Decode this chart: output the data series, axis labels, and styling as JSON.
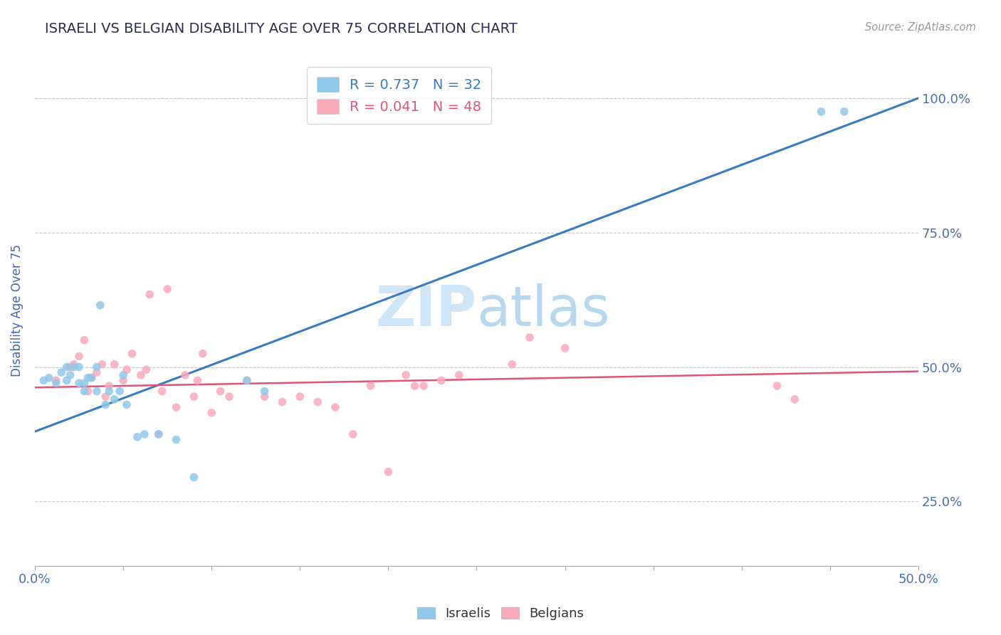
{
  "title": "ISRAELI VS BELGIAN DISABILITY AGE OVER 75 CORRELATION CHART",
  "source": "Source: ZipAtlas.com",
  "ylabel": "Disability Age Over 75",
  "xlim": [
    0,
    0.5
  ],
  "ylim": [
    0.13,
    1.08
  ],
  "xticks": [
    0.0,
    0.05,
    0.1,
    0.15,
    0.2,
    0.25,
    0.3,
    0.35,
    0.4,
    0.45,
    0.5
  ],
  "yticks": [
    0.25,
    0.5,
    0.75,
    1.0
  ],
  "yticklabels": [
    "25.0%",
    "50.0%",
    "75.0%",
    "100.0%"
  ],
  "israeli_R": 0.737,
  "israeli_N": 32,
  "belgian_R": 0.041,
  "belgian_N": 48,
  "israeli_color": "#8fc8e8",
  "belgian_color": "#f9aabb",
  "israeli_line_color": "#3a7abf",
  "belgian_line_color": "#e05575",
  "background_color": "#ffffff",
  "grid_color": "#c8c8c8",
  "title_color": "#2c2c4e",
  "axis_label_color": "#4466aa",
  "tick_label_color": "#4a6faa",
  "watermark_color": "#d0e5f5",
  "israelis_x": [
    0.005,
    0.008,
    0.012,
    0.015,
    0.018,
    0.018,
    0.02,
    0.022,
    0.025,
    0.025,
    0.028,
    0.028,
    0.03,
    0.032,
    0.035,
    0.035,
    0.037,
    0.04,
    0.042,
    0.045,
    0.048,
    0.05,
    0.052,
    0.058,
    0.062,
    0.07,
    0.08,
    0.09,
    0.12,
    0.13,
    0.445,
    0.458
  ],
  "israelis_y": [
    0.475,
    0.48,
    0.47,
    0.49,
    0.475,
    0.5,
    0.485,
    0.5,
    0.47,
    0.5,
    0.455,
    0.47,
    0.48,
    0.48,
    0.455,
    0.5,
    0.615,
    0.43,
    0.455,
    0.44,
    0.455,
    0.485,
    0.43,
    0.37,
    0.375,
    0.375,
    0.365,
    0.295,
    0.475,
    0.455,
    0.975,
    0.975
  ],
  "belgians_x": [
    0.012,
    0.02,
    0.022,
    0.025,
    0.028,
    0.03,
    0.032,
    0.035,
    0.038,
    0.04,
    0.042,
    0.045,
    0.05,
    0.052,
    0.055,
    0.06,
    0.063,
    0.065,
    0.07,
    0.072,
    0.075,
    0.08,
    0.085,
    0.09,
    0.092,
    0.095,
    0.1,
    0.105,
    0.11,
    0.12,
    0.13,
    0.14,
    0.15,
    0.16,
    0.17,
    0.18,
    0.19,
    0.2,
    0.21,
    0.215,
    0.22,
    0.23,
    0.24,
    0.27,
    0.28,
    0.3,
    0.42,
    0.43
  ],
  "belgians_y": [
    0.475,
    0.5,
    0.505,
    0.52,
    0.55,
    0.455,
    0.48,
    0.49,
    0.505,
    0.445,
    0.465,
    0.505,
    0.475,
    0.495,
    0.525,
    0.485,
    0.495,
    0.635,
    0.375,
    0.455,
    0.645,
    0.425,
    0.485,
    0.445,
    0.475,
    0.525,
    0.415,
    0.455,
    0.445,
    0.475,
    0.445,
    0.435,
    0.445,
    0.435,
    0.425,
    0.375,
    0.465,
    0.305,
    0.485,
    0.465,
    0.465,
    0.475,
    0.485,
    0.505,
    0.555,
    0.535,
    0.465,
    0.44
  ]
}
